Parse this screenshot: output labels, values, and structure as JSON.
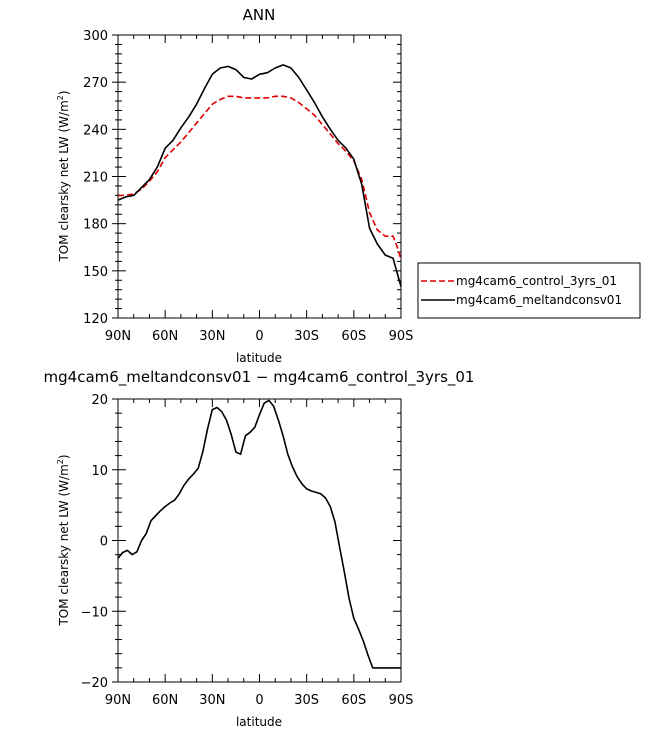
{
  "chart_data": [
    {
      "type": "line",
      "title": "ANN",
      "xlabel": "latitude",
      "ylabel": "TOM clearsky net LW (W/m²)",
      "ylabel_main": "TOM clearsky net LW (W/m",
      "ylabel_sup": "2",
      "ylabel_end": ")",
      "x_tick_labels": [
        "90N",
        "60N",
        "30N",
        "0",
        "30S",
        "60S",
        "90S"
      ],
      "x_tick_values": [
        90,
        60,
        30,
        0,
        -30,
        -60,
        -90
      ],
      "xlim": [
        90,
        -90
      ],
      "ylim": [
        120,
        300
      ],
      "y_ticks": [
        120,
        150,
        180,
        210,
        240,
        270,
        300
      ],
      "y_tick_labels": [
        "120",
        "150",
        "180",
        "210",
        "240",
        "270",
        "300"
      ],
      "legend_placement": "right",
      "series": [
        {
          "name": "mg4cam6_control_3yrs_01",
          "color": "#e00000",
          "dash": "dashed",
          "x": [
            90,
            85,
            80,
            75,
            70,
            65,
            60,
            55,
            50,
            45,
            40,
            35,
            30,
            25,
            20,
            15,
            10,
            5,
            0,
            -5,
            -10,
            -15,
            -20,
            -25,
            -30,
            -35,
            -40,
            -45,
            -50,
            -55,
            -60,
            -65,
            -70,
            -75,
            -80,
            -85,
            -88,
            -90
          ],
          "values": [
            198,
            198,
            199,
            202,
            207,
            213,
            222,
            227,
            232,
            238,
            244,
            250,
            256,
            259,
            261,
            261,
            260,
            260,
            260,
            260,
            261,
            261,
            260,
            257,
            253,
            249,
            243,
            237,
            231,
            226,
            220,
            208,
            187,
            176,
            172,
            172,
            164,
            157
          ]
        },
        {
          "name": "mg4cam6_meltandconsv01",
          "color": "#000000",
          "dash": "solid",
          "x": [
            90,
            85,
            80,
            75,
            70,
            65,
            60,
            55,
            50,
            45,
            40,
            35,
            30,
            25,
            20,
            15,
            10,
            5,
            0,
            -5,
            -10,
            -15,
            -20,
            -25,
            -30,
            -35,
            -40,
            -45,
            -50,
            -55,
            -60,
            -65,
            -70,
            -75,
            -80,
            -85,
            -88,
            -90
          ],
          "values": [
            195,
            197,
            198,
            203,
            208,
            216,
            228,
            233,
            241,
            248,
            256,
            266,
            275,
            279,
            280,
            278,
            273,
            272,
            275,
            276,
            279,
            281,
            279,
            273,
            265,
            257,
            248,
            240,
            233,
            228,
            221,
            205,
            177,
            167,
            160,
            158,
            147,
            140
          ]
        }
      ]
    },
    {
      "type": "line",
      "title": "mg4cam6_meltandconsv01 − mg4cam6_control_3yrs_01",
      "xlabel": "latitude",
      "ylabel": "TOM clearsky net LW (W/m²)",
      "ylabel_main": "TOM clearsky net LW (W/m",
      "ylabel_sup": "2",
      "ylabel_end": ")",
      "x_tick_labels": [
        "90N",
        "60N",
        "30N",
        "0",
        "30S",
        "60S",
        "90S"
      ],
      "x_tick_values": [
        90,
        60,
        30,
        0,
        -30,
        -60,
        -90
      ],
      "xlim": [
        90,
        -90
      ],
      "ylim": [
        -20,
        20
      ],
      "y_ticks": [
        -20,
        -10,
        0,
        10,
        20
      ],
      "y_tick_labels": [
        "−20",
        "−10",
        "0",
        "10",
        "20"
      ],
      "series": [
        {
          "color": "#000000",
          "dash": "solid",
          "x": [
            90,
            87,
            84,
            81,
            78,
            75,
            72,
            69,
            66,
            63,
            60,
            57,
            54,
            51,
            48,
            45,
            42,
            39,
            36,
            33,
            30,
            27,
            24,
            21,
            18,
            15,
            12,
            9,
            6,
            3,
            0,
            -3,
            -6,
            -9,
            -12,
            -15,
            -18,
            -21,
            -24,
            -27,
            -30,
            -33,
            -36,
            -39,
            -42,
            -45,
            -48,
            -51,
            -54,
            -57,
            -60,
            -63,
            -66,
            -69,
            -72,
            -75,
            -78,
            -81,
            -84,
            -87,
            -90
          ],
          "values": [
            -2.5,
            -1.7,
            -1.4,
            -2.0,
            -1.6,
            0.0,
            1.0,
            2.8,
            3.5,
            4.2,
            4.8,
            5.3,
            5.7,
            6.6,
            7.8,
            8.7,
            9.4,
            10.2,
            12.6,
            15.8,
            18.5,
            18.8,
            18.2,
            17.0,
            15.0,
            12.5,
            12.2,
            14.8,
            15.3,
            16.0,
            17.8,
            19.4,
            19.8,
            19.0,
            17.0,
            14.8,
            12.2,
            10.4,
            9.0,
            8.0,
            7.3,
            7.0,
            6.8,
            6.6,
            6.0,
            4.8,
            2.6,
            -1.0,
            -4.5,
            -8.2,
            -11.0,
            -12.5,
            -14.2,
            -16.2,
            -18.0,
            -18.0,
            -18.0,
            -18.0,
            -18.0,
            -18.0,
            -18.0
          ]
        }
      ]
    }
  ]
}
